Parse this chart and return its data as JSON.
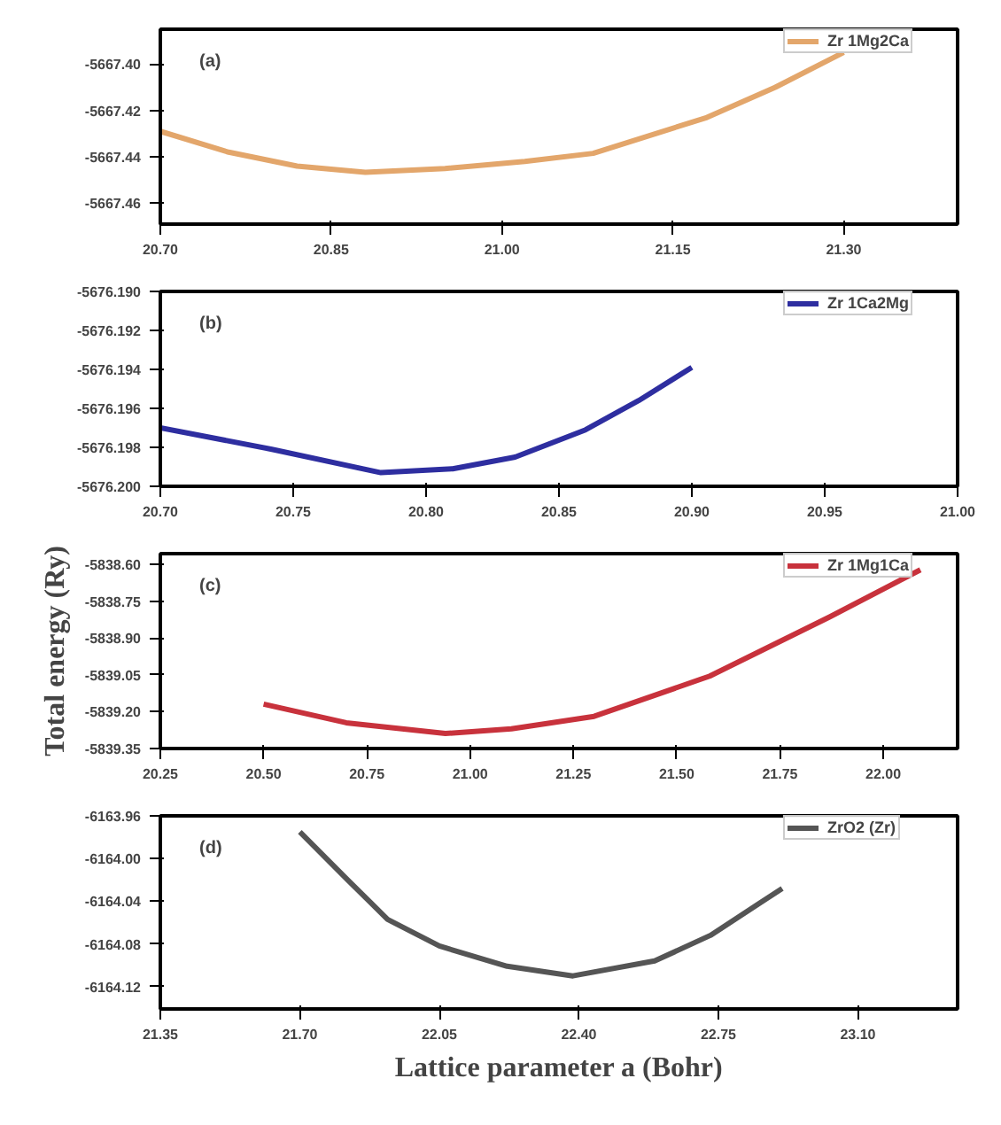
{
  "chart_data": [
    {
      "type": "line",
      "annotations": [
        "(a)"
      ],
      "legend": "top right",
      "xlim": [
        20.7,
        21.4
      ],
      "xticks": [
        {
          "value": 20.7,
          "label": "20.70"
        },
        {
          "value": 20.85,
          "label": "20.85"
        },
        {
          "value": 21.0,
          "label": "21.00"
        },
        {
          "value": 21.15,
          "label": "21.15"
        },
        {
          "value": 21.3,
          "label": "21.30"
        }
      ],
      "ylim": [
        -5667.469,
        -5667.385
      ],
      "yticks": [
        {
          "value": -5667.4,
          "label": "-5667.40"
        },
        {
          "value": -5667.42,
          "label": "-5667.42"
        },
        {
          "value": -5667.44,
          "label": "-5667.44"
        },
        {
          "value": -5667.46,
          "label": "-5667.46"
        }
      ],
      "series": [
        {
          "name": "Zr 1Mg2Ca",
          "color": "#e3a66b",
          "x": [
            20.7,
            20.76,
            20.82,
            20.88,
            20.95,
            21.02,
            21.08,
            21.18,
            21.24,
            21.3
          ],
          "values": [
            -5667.429,
            -5667.438,
            -5667.444,
            -5667.4467,
            -5667.445,
            -5667.442,
            -5667.4385,
            -5667.423,
            -5667.41,
            -5667.395
          ]
        }
      ]
    },
    {
      "type": "line",
      "annotations": [
        "(b)"
      ],
      "legend": "top right",
      "xlim": [
        20.7,
        21.0
      ],
      "xticks": [
        {
          "value": 20.7,
          "label": "20.70"
        },
        {
          "value": 20.75,
          "label": "20.75"
        },
        {
          "value": 20.8,
          "label": "20.80"
        },
        {
          "value": 20.85,
          "label": "20.85"
        },
        {
          "value": 20.9,
          "label": "20.90"
        },
        {
          "value": 20.95,
          "label": "20.95"
        },
        {
          "value": 21.0,
          "label": "21.00"
        }
      ],
      "ylim": [
        -5676.2,
        -5676.19
      ],
      "yticks": [
        {
          "value": -5676.19,
          "label": "-5676.190"
        },
        {
          "value": -5676.192,
          "label": "-5676.192"
        },
        {
          "value": -5676.194,
          "label": "-5676.194"
        },
        {
          "value": -5676.196,
          "label": "-5676.196"
        },
        {
          "value": -5676.198,
          "label": "-5676.198"
        },
        {
          "value": -5676.2,
          "label": "-5676.200"
        }
      ],
      "series": [
        {
          "name": "Zr 1Ca2Mg",
          "color": "#2e2ea0",
          "x": [
            20.7,
            20.742,
            20.783,
            20.81,
            20.8335,
            20.86,
            20.88,
            20.9
          ],
          "values": [
            -5676.197,
            -5676.1981,
            -5676.1993,
            -5676.1991,
            -5676.1985,
            -5676.1971,
            -5676.1956,
            -5676.1939
          ]
        }
      ]
    },
    {
      "type": "line",
      "annotations": [
        "(c)"
      ],
      "legend": "top right",
      "ylabel": "Total energy (Ry)",
      "xlim": [
        20.25,
        22.18
      ],
      "xticks": [
        {
          "value": 20.25,
          "label": "20.25"
        },
        {
          "value": 20.5,
          "label": "20.50"
        },
        {
          "value": 20.75,
          "label": "20.75"
        },
        {
          "value": 21.0,
          "label": "21.00"
        },
        {
          "value": 21.25,
          "label": "21.25"
        },
        {
          "value": 21.5,
          "label": "21.50"
        },
        {
          "value": 21.75,
          "label": "21.75"
        },
        {
          "value": 22.0,
          "label": "22.00"
        }
      ],
      "ylim": [
        -5839.35,
        -5838.556
      ],
      "yticks": [
        {
          "value": -5838.6,
          "label": "-5838.60"
        },
        {
          "value": -5838.75,
          "label": "-5838.75"
        },
        {
          "value": -5838.9,
          "label": "-5838.90"
        },
        {
          "value": -5839.05,
          "label": "-5839.05"
        },
        {
          "value": -5839.2,
          "label": "-5839.20"
        },
        {
          "value": -5839.35,
          "label": "-5839.35"
        }
      ],
      "series": [
        {
          "name": "Zr 1Mg1Ca",
          "color": "#c8323c",
          "x": [
            20.5,
            20.7,
            20.94,
            21.1,
            21.3,
            21.58,
            21.87,
            22.09
          ],
          "values": [
            -5839.169,
            -5839.245,
            -5839.289,
            -5839.27,
            -5839.219,
            -5839.055,
            -5838.814,
            -5838.622
          ]
        }
      ]
    },
    {
      "type": "line",
      "annotations": [
        "(d)"
      ],
      "legend": "top right",
      "xlabel": "Lattice parameter a (Bohr)",
      "xlim": [
        21.35,
        23.35
      ],
      "xticks": [
        {
          "value": 21.35,
          "label": "21.35"
        },
        {
          "value": 21.7,
          "label": "21.70"
        },
        {
          "value": 22.05,
          "label": "22.05"
        },
        {
          "value": 22.4,
          "label": "22.40"
        },
        {
          "value": 22.75,
          "label": "22.75"
        },
        {
          "value": 23.1,
          "label": "23.10"
        }
      ],
      "ylim": [
        -6164.141,
        -6163.96
      ],
      "yticks": [
        {
          "value": -6163.96,
          "label": "-6163.96"
        },
        {
          "value": -6164.0,
          "label": "-6164.00"
        },
        {
          "value": -6164.04,
          "label": "-6164.04"
        },
        {
          "value": -6164.08,
          "label": "-6164.08"
        },
        {
          "value": -6164.12,
          "label": "-6164.12"
        }
      ],
      "series": [
        {
          "name": "ZrO2 (Zr)",
          "color": "#555555",
          "x": [
            21.7,
            21.82,
            21.92,
            22.05,
            22.22,
            22.385,
            22.59,
            22.73,
            22.91
          ],
          "values": [
            -6163.975,
            -6164.02,
            -6164.057,
            -6164.082,
            -6164.101,
            -6164.11,
            -6164.096,
            -6164.072,
            -6164.028
          ]
        }
      ]
    }
  ]
}
